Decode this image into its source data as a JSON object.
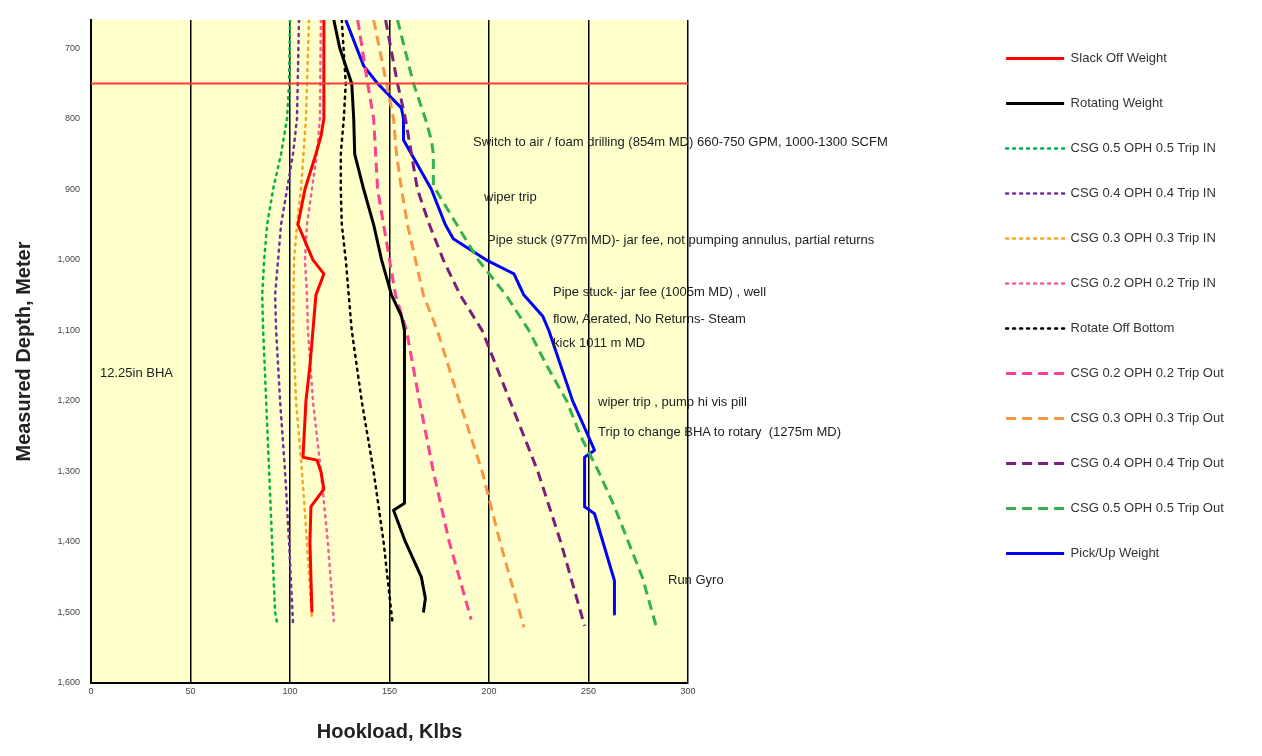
{
  "chart_data": {
    "type": "line",
    "xlabel": "Hookload, Klbs",
    "ylabel": "Measured Depth, Meter",
    "xlim": [
      0,
      300
    ],
    "xticks": [
      0,
      50,
      100,
      150,
      200,
      250,
      300
    ],
    "ylim": [
      1600,
      660
    ],
    "yticks": [
      700,
      800,
      900,
      {
        "value": 1000,
        "label": "1,000"
      },
      {
        "value": 1100,
        "label": "1,100"
      },
      {
        "value": 1200,
        "label": "1,200"
      },
      {
        "value": 1300,
        "label": "1,300"
      },
      {
        "value": 1400,
        "label": "1,400"
      },
      {
        "value": 1500,
        "label": "1,500"
      },
      {
        "value": 1600,
        "label": "1,600"
      }
    ],
    "grid": "x",
    "legend": "right",
    "ref_lines": [
      {
        "axis": "y",
        "value": 750,
        "color": "#ff3b3b"
      }
    ],
    "annotations": [
      "Switch to air / foam drilling (854m MD) 660-750 GPM, 1000-1300 SCFM",
      "wiper trip",
      "Pipe stuck (977m MD)- jar fee, not pumping annulus, partial returns",
      "Pipe stuck- jar fee (1005m MD) , well",
      "flow, Aerated, No Returns- Steam",
      "kick 1011 m MD",
      "12.25in BHA",
      "wiper trip , pump hi vis pill",
      "Trip to change BHA to rotary  (1275m MD)",
      "Run Gyro"
    ],
    "series": [
      {
        "name": "Slack Off Weight",
        "color": "#ff0000",
        "line_style": "solid",
        "x": [
          117,
          117,
          115.5,
          113,
          107.5,
          104,
          111.5,
          117,
          113,
          111.5,
          110,
          108,
          106.5,
          113.5,
          115.5,
          117,
          110.5,
          110,
          110.5,
          111
        ],
        "values": [
          660,
          800,
          825,
          850,
          900,
          950,
          1000,
          1020,
          1050,
          1100,
          1150,
          1200,
          1280,
          1284,
          1300,
          1325,
          1350,
          1400,
          1450,
          1500
        ]
      },
      {
        "name": "Rotating Weight",
        "color": "#000000",
        "line_style": "solid",
        "x": [
          122,
          125,
          131,
          132,
          132.5,
          137,
          142,
          146,
          151,
          156,
          157.5,
          157.5,
          152,
          158,
          166,
          168,
          167
        ],
        "values": [
          660,
          700,
          750,
          800,
          850,
          900,
          950,
          1000,
          1050,
          1080,
          1100,
          1345,
          1355,
          1400,
          1450,
          1480,
          1500
        ]
      },
      {
        "name": "CSG 0.5 OPH 0.5 Trip IN",
        "color": "#00b050",
        "line_style": "dotted",
        "x": [
          100,
          99.5,
          98.5,
          95.5,
          91.5,
          88.5,
          87,
          86,
          86.5,
          88,
          89.5,
          91,
          92.5,
          93.5
        ],
        "values": [
          660,
          750,
          800,
          850,
          900,
          950,
          1000,
          1050,
          1100,
          1200,
          1300,
          1400,
          1500,
          1515
        ]
      },
      {
        "name": "CSG 0.4 OPH 0.4 Trip IN",
        "color": "#7030a0",
        "line_style": "dotted",
        "x": [
          104.5,
          103.5,
          101.5,
          98.5,
          95.5,
          94,
          92.5,
          93,
          95,
          97.5,
          99.5,
          101.5
        ],
        "values": [
          660,
          800,
          850,
          900,
          950,
          1000,
          1050,
          1100,
          1200,
          1300,
          1400,
          1515
        ]
      },
      {
        "name": "CSG 0.3 OPH 0.3 Trip IN",
        "color": "#f5a623",
        "line_style": "dotted",
        "x": [
          109.5,
          108,
          105.5,
          103.5,
          102,
          101.5,
          103,
          106,
          108.5,
          111
        ],
        "values": [
          660,
          800,
          900,
          950,
          1000,
          1100,
          1200,
          1300,
          1400,
          1508
        ]
      },
      {
        "name": "CSG 0.2 OPH 0.2 Trip IN",
        "color": "#f0609a",
        "line_style": "dotted",
        "x": [
          115.5,
          115,
          113.5,
          111,
          108.5,
          107.5,
          108.5,
          109,
          111.5,
          115.5,
          119,
          122
        ],
        "values": [
          660,
          800,
          850,
          900,
          950,
          1000,
          1050,
          1100,
          1200,
          1300,
          1400,
          1512
        ]
      },
      {
        "name": "Rotate Off Bottom",
        "color": "#000000",
        "line_style": "dotted",
        "x": [
          126,
          128,
          127,
          125.5,
          125.5,
          126,
          128,
          129.5,
          131,
          136,
          142,
          147,
          151.5
        ],
        "values": [
          660,
          750,
          800,
          850,
          900,
          950,
          1000,
          1050,
          1100,
          1200,
          1300,
          1400,
          1515
        ]
      },
      {
        "name": "CSG 0.2 OPH 0.2 Trip Out",
        "color": "#ff3f8f",
        "line_style": "dashed",
        "x": [
          134,
          139,
          142,
          143,
          144,
          147,
          150,
          153,
          158.5,
          165,
          172,
          180,
          191
        ],
        "values": [
          660,
          750,
          800,
          850,
          900,
          950,
          1000,
          1050,
          1100,
          1200,
          1300,
          1400,
          1510
        ]
      },
      {
        "name": "CSG 0.3 OPH 0.3 Trip Out",
        "color": "#f79646",
        "line_style": "dashed",
        "x": [
          142,
          148.5,
          152,
          153.5,
          156,
          159,
          163,
          167,
          174,
          185,
          196.5,
          205.5,
          217.5
        ],
        "values": [
          660,
          750,
          800,
          850,
          900,
          950,
          1000,
          1050,
          1100,
          1200,
          1300,
          1400,
          1521
        ]
      },
      {
        "name": "CSG 0.4 OPH 0.4 Trip Out",
        "color": "#7b1f7f",
        "line_style": "dashed",
        "x": [
          148,
          154,
          158,
          161,
          164,
          170,
          177,
          185.5,
          196.5,
          210.5,
          224.5,
          236,
          248
        ],
        "values": [
          660,
          750,
          800,
          850,
          900,
          950,
          1000,
          1050,
          1100,
          1200,
          1300,
          1400,
          1519
        ]
      },
      {
        "name": "CSG 0.5 OPH 0.5 Trip Out",
        "color": "#33b050",
        "line_style": "dashed",
        "x": [
          154,
          162,
          168,
          171,
          172,
          172,
          194.5,
          208.5,
          220,
          229,
          239,
          246,
          255,
          263,
          270,
          277,
          284
        ],
        "values": [
          660,
          750,
          800,
          830,
          850,
          895,
          1000,
          1050,
          1100,
          1150,
          1200,
          1250,
          1300,
          1350,
          1400,
          1450,
          1520
        ]
      },
      {
        "name": "Pick/Up Weight",
        "color": "#0000ff",
        "line_style": "solid",
        "x": [
          128,
          137,
          144,
          156,
          157,
          157,
          161,
          171,
          178,
          182,
          198.5,
          212.5,
          217.5,
          227,
          230,
          242,
          253,
          248,
          248,
          253,
          263,
          263
        ],
        "values": [
          660,
          725,
          750,
          785,
          800,
          830,
          850,
          900,
          950,
          970,
          1000,
          1020,
          1050,
          1080,
          1100,
          1200,
          1270,
          1280,
          1350,
          1360,
          1455,
          1502
        ]
      }
    ]
  }
}
